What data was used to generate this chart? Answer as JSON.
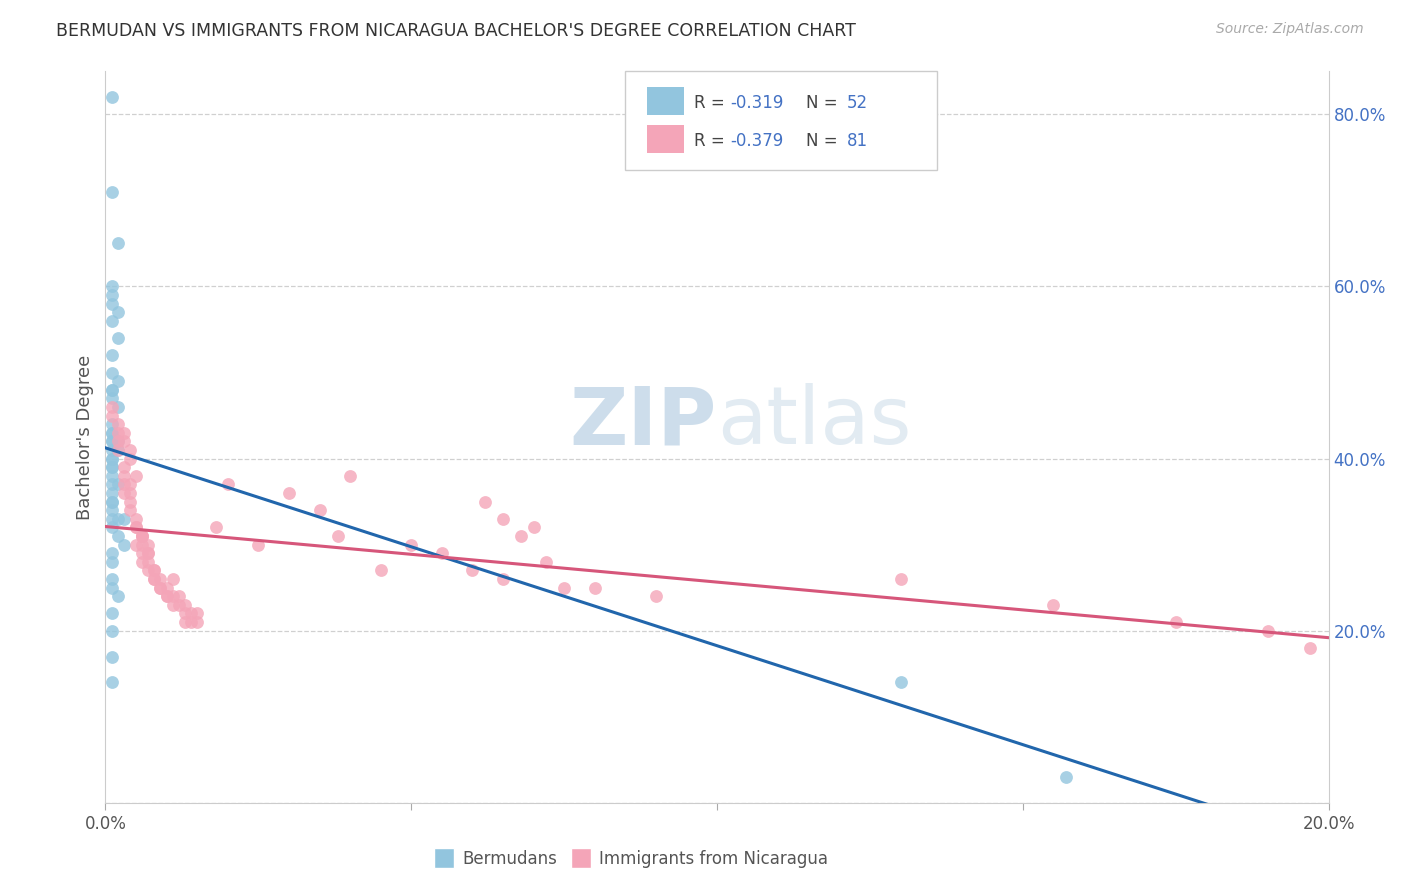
{
  "title": "BERMUDAN VS IMMIGRANTS FROM NICARAGUA BACHELOR'S DEGREE CORRELATION CHART",
  "source": "Source: ZipAtlas.com",
  "ylabel": "Bachelor's Degree",
  "bottom_legend_blue": "Bermudans",
  "bottom_legend_pink": "Immigrants from Nicaragua",
  "blue_color": "#92c5de",
  "pink_color": "#f4a5b8",
  "blue_line_color": "#2166ac",
  "pink_line_color": "#d6567a",
  "blue_r": -0.319,
  "pink_r": -0.379,
  "blue_n": 52,
  "pink_n": 81,
  "xlim": [
    0.0,
    0.2
  ],
  "ylim": [
    0.0,
    0.85
  ],
  "right_yticks": [
    0.0,
    0.2,
    0.4,
    0.6,
    0.8
  ],
  "right_ytick_labels": [
    "",
    "20.0%",
    "40.0%",
    "60.0%",
    "80.0%"
  ],
  "label_color": "#4472c4",
  "text_color": "#555555",
  "watermark_color": "#d8e8f0",
  "background_color": "#ffffff",
  "grid_color": "#d0d0d0",
  "title_color": "#333333",
  "blue_x": [
    0.001,
    0.001,
    0.002,
    0.001,
    0.002,
    0.001,
    0.001,
    0.001,
    0.002,
    0.001,
    0.001,
    0.002,
    0.001,
    0.001,
    0.001,
    0.002,
    0.001,
    0.001,
    0.001,
    0.001,
    0.002,
    0.001,
    0.001,
    0.001,
    0.001,
    0.002,
    0.001,
    0.001,
    0.001,
    0.002,
    0.001,
    0.001,
    0.001,
    0.001,
    0.001,
    0.002,
    0.001,
    0.003,
    0.001,
    0.002,
    0.003,
    0.001,
    0.001,
    0.001,
    0.001,
    0.002,
    0.001,
    0.001,
    0.001,
    0.001,
    0.13,
    0.157
  ],
  "blue_y": [
    0.82,
    0.71,
    0.65,
    0.6,
    0.57,
    0.59,
    0.58,
    0.56,
    0.54,
    0.5,
    0.52,
    0.49,
    0.48,
    0.47,
    0.48,
    0.46,
    0.44,
    0.43,
    0.43,
    0.42,
    0.42,
    0.41,
    0.42,
    0.4,
    0.4,
    0.41,
    0.39,
    0.39,
    0.38,
    0.37,
    0.37,
    0.36,
    0.35,
    0.35,
    0.34,
    0.33,
    0.33,
    0.33,
    0.32,
    0.31,
    0.3,
    0.29,
    0.28,
    0.26,
    0.25,
    0.24,
    0.22,
    0.2,
    0.17,
    0.14,
    0.14,
    0.03
  ],
  "pink_x": [
    0.001,
    0.002,
    0.001,
    0.002,
    0.003,
    0.002,
    0.003,
    0.004,
    0.003,
    0.002,
    0.003,
    0.004,
    0.004,
    0.005,
    0.003,
    0.004,
    0.005,
    0.006,
    0.004,
    0.005,
    0.003,
    0.005,
    0.006,
    0.004,
    0.006,
    0.007,
    0.005,
    0.006,
    0.007,
    0.006,
    0.007,
    0.008,
    0.006,
    0.007,
    0.008,
    0.009,
    0.007,
    0.008,
    0.008,
    0.009,
    0.01,
    0.009,
    0.01,
    0.011,
    0.01,
    0.011,
    0.011,
    0.012,
    0.013,
    0.012,
    0.013,
    0.014,
    0.014,
    0.015,
    0.013,
    0.045,
    0.055,
    0.06,
    0.065,
    0.065,
    0.07,
    0.075,
    0.04,
    0.05,
    0.035,
    0.038,
    0.03,
    0.025,
    0.02,
    0.018,
    0.015,
    0.062,
    0.068,
    0.072,
    0.08,
    0.09,
    0.13,
    0.155,
    0.175,
    0.19,
    0.197
  ],
  "pink_y": [
    0.45,
    0.44,
    0.46,
    0.43,
    0.42,
    0.41,
    0.43,
    0.4,
    0.38,
    0.42,
    0.39,
    0.37,
    0.41,
    0.38,
    0.36,
    0.35,
    0.33,
    0.31,
    0.34,
    0.32,
    0.37,
    0.3,
    0.29,
    0.36,
    0.28,
    0.27,
    0.32,
    0.3,
    0.28,
    0.31,
    0.29,
    0.26,
    0.31,
    0.3,
    0.27,
    0.25,
    0.29,
    0.27,
    0.26,
    0.26,
    0.24,
    0.25,
    0.24,
    0.23,
    0.25,
    0.24,
    0.26,
    0.23,
    0.22,
    0.24,
    0.23,
    0.22,
    0.21,
    0.22,
    0.21,
    0.27,
    0.29,
    0.27,
    0.33,
    0.26,
    0.32,
    0.25,
    0.38,
    0.3,
    0.34,
    0.31,
    0.36,
    0.3,
    0.37,
    0.32,
    0.21,
    0.35,
    0.31,
    0.28,
    0.25,
    0.24,
    0.26,
    0.23,
    0.21,
    0.2,
    0.18
  ]
}
